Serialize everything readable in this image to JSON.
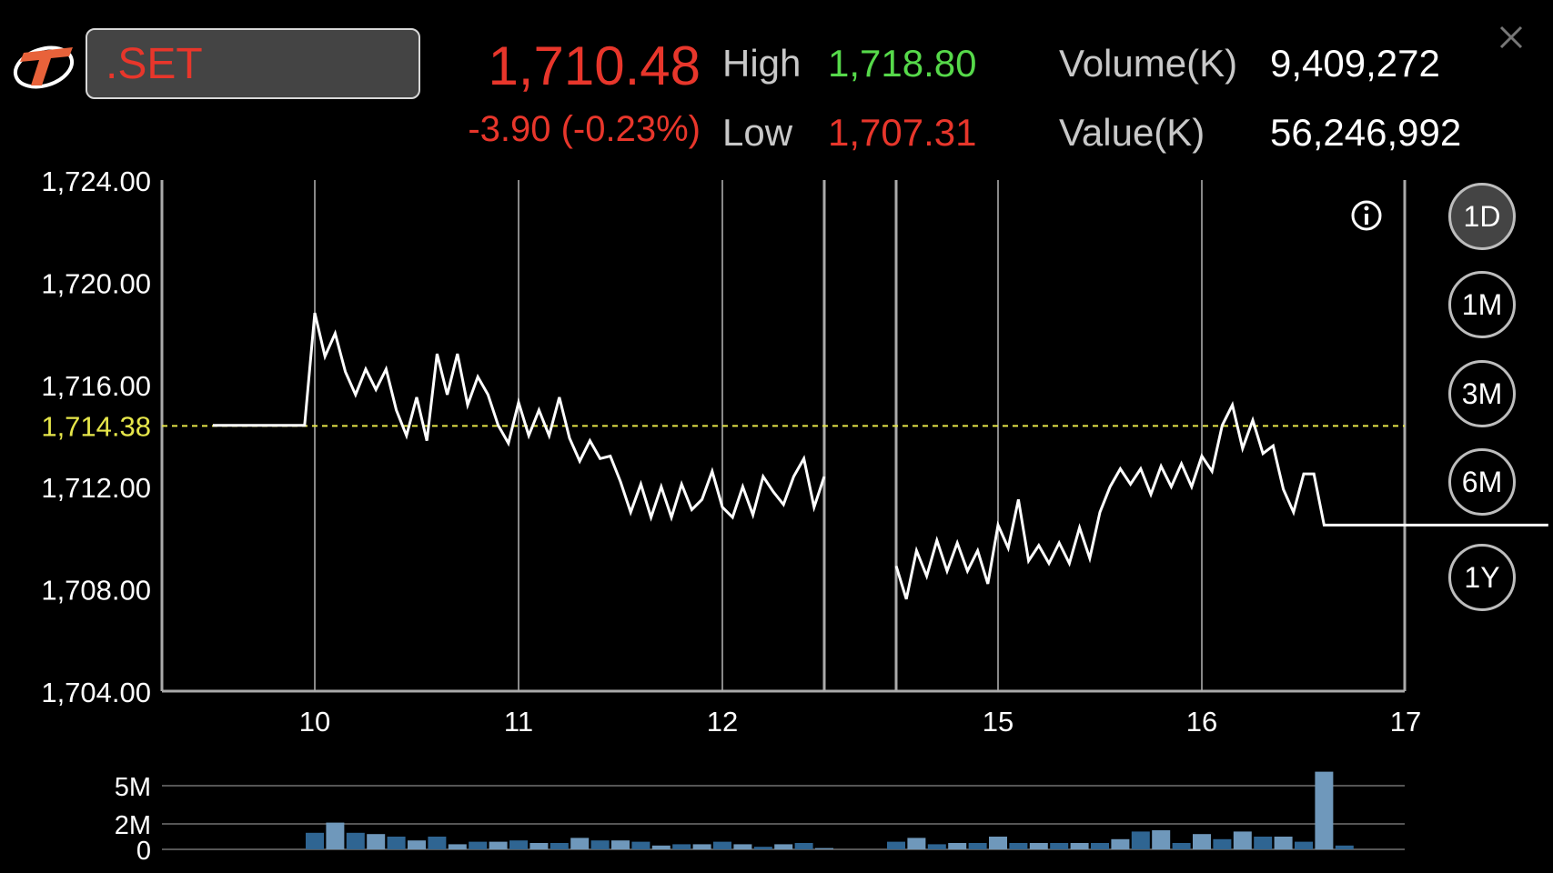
{
  "header": {
    "symbol": ".SET",
    "last_price": "1,710.48",
    "change": "-3.90 (-0.23%)",
    "high_label": "High",
    "high_value": "1,718.80",
    "low_label": "Low",
    "low_value": "1,707.31",
    "volume_label": "Volume(K)",
    "volume_value": "9,409,272",
    "value_label": "Value(K)",
    "value_value": "56,246,992"
  },
  "ranges": [
    {
      "label": "1D",
      "active": true
    },
    {
      "label": "1M",
      "active": false
    },
    {
      "label": "3M",
      "active": false
    },
    {
      "label": "6M",
      "active": false
    },
    {
      "label": "1Y",
      "active": false
    }
  ],
  "colors": {
    "up": "#56d94a",
    "down": "#e8362b",
    "prev_close_line": "#e6e64a",
    "volume_bar": "#3d6f99"
  },
  "chart_data": [
    {
      "type": "line",
      "ylim": [
        1704.0,
        1724.0
      ],
      "y_ticks": [
        "1,724.00",
        "1,720.00",
        "1,716.00",
        "1,712.00",
        "1,708.00",
        "1,704.00"
      ],
      "y_tick_values": [
        1724,
        1720,
        1716,
        1712,
        1708,
        1704
      ],
      "x_ticks": [
        "10",
        "11",
        "12",
        "15",
        "16",
        "17"
      ],
      "prev_close": 1714.38,
      "prev_close_label": "1,714.38",
      "series": [
        {
          "segments": [
            {
              "x": [
                9.5,
                9.95,
                10.0,
                10.05,
                10.1,
                10.15,
                10.2,
                10.25,
                10.3,
                10.35,
                10.4,
                10.45,
                10.5,
                10.55,
                10.6,
                10.65,
                10.7,
                10.75,
                10.8,
                10.85,
                10.9,
                10.95,
                11.0,
                11.05,
                11.1,
                11.15,
                11.2,
                11.25,
                11.3,
                11.35,
                11.4,
                11.45,
                11.5,
                11.55,
                11.6,
                11.65,
                11.7,
                11.75,
                11.8,
                11.85,
                11.9,
                11.95,
                12.0,
                12.05,
                12.1,
                12.15,
                12.2,
                12.25,
                12.3,
                12.35,
                12.4,
                12.45,
                12.5
              ],
              "y": [
                1714.4,
                1714.4,
                1718.8,
                1717.1,
                1718.0,
                1716.5,
                1715.6,
                1716.6,
                1715.8,
                1716.6,
                1715.0,
                1714.0,
                1715.5,
                1713.8,
                1717.2,
                1715.6,
                1717.2,
                1715.2,
                1716.3,
                1715.6,
                1714.4,
                1713.7,
                1715.3,
                1714.0,
                1715.0,
                1714.0,
                1715.5,
                1713.9,
                1713.0,
                1713.8,
                1713.1,
                1713.2,
                1712.2,
                1711.0,
                1712.1,
                1710.8,
                1712.0,
                1710.8,
                1712.1,
                1711.1,
                1711.5,
                1712.6,
                1711.2,
                1710.8,
                1712.0,
                1710.9,
                1712.4,
                1711.8,
                1711.3,
                1712.4,
                1713.1,
                1711.2,
                1712.4
              ]
            },
            {
              "x": [
                13.0,
                13.05,
                13.1,
                13.15,
                13.2,
                13.25,
                13.3,
                13.35,
                13.4,
                13.45,
                13.5,
                13.55,
                13.6,
                13.65,
                13.7,
                13.75,
                13.8,
                13.85,
                13.9,
                13.95,
                14.0,
                14.05,
                14.1,
                14.15,
                14.2,
                14.25,
                14.3,
                14.35,
                14.4,
                14.45,
                14.5,
                14.55,
                14.6,
                14.65,
                14.7,
                14.75,
                14.8,
                14.85,
                14.9,
                14.95,
                15.0,
                15.05,
                15.1,
                15.15,
                15.2,
                15.25,
                15.3,
                15.35,
                15.4,
                15.45,
                15.5,
                15.55,
                15.6,
                15.65,
                15.7,
                15.75,
                15.8,
                15.85,
                15.9,
                15.95,
                16.0,
                16.05,
                16.1,
                16.15,
                16.2
              ],
              "y": [
                1708.9,
                1707.6,
                1709.5,
                1708.5,
                1709.9,
                1708.7,
                1709.8,
                1708.7,
                1709.5,
                1708.2,
                1710.5,
                1709.6,
                1711.5,
                1709.1,
                1709.7,
                1709.0,
                1709.8,
                1709.0,
                1710.4,
                1709.2,
                1711.0,
                1712.0,
                1712.7,
                1712.1,
                1712.7,
                1711.7,
                1712.8,
                1712.0,
                1712.9,
                1712.0,
                1713.2,
                1712.6,
                1714.4,
                1715.2,
                1713.5,
                1714.6,
                1713.3,
                1713.6,
                1711.9,
                1711.0,
                1712.5,
                1712.5,
                1710.5,
                1710.5,
                1710.5,
                1710.5,
                1710.5,
                1710.5,
                1710.5,
                1710.5,
                1710.5,
                1710.5,
                1710.5,
                1710.5,
                1710.5,
                1710.5,
                1710.5,
                1710.5,
                1710.5,
                1710.5,
                1710.5,
                1710.5,
                1710.5,
                1710.5,
                1710.5
              ]
            }
          ]
        }
      ]
    },
    {
      "type": "bar",
      "y_ticks": [
        "5M",
        "2M",
        "0"
      ],
      "y_tick_values": [
        5,
        2,
        0
      ],
      "ylim": [
        0,
        7
      ],
      "x": [
        10.0,
        10.1,
        10.2,
        10.3,
        10.4,
        10.5,
        10.6,
        10.7,
        10.8,
        10.9,
        11.0,
        11.1,
        11.2,
        11.3,
        11.4,
        11.5,
        11.6,
        11.7,
        11.8,
        11.9,
        12.0,
        12.1,
        12.2,
        12.3,
        12.4,
        12.5,
        13.0,
        13.1,
        13.2,
        13.3,
        13.4,
        13.5,
        13.6,
        13.7,
        13.8,
        13.9,
        14.0,
        14.1,
        14.2,
        14.3,
        14.4,
        14.5,
        14.6,
        14.7,
        14.8,
        14.9,
        15.0,
        15.1,
        15.2,
        15.3,
        15.4,
        15.5,
        15.6
      ],
      "values": [
        1.3,
        2.1,
        1.3,
        1.2,
        1.0,
        0.7,
        1.0,
        0.4,
        0.6,
        0.6,
        0.7,
        0.5,
        0.5,
        0.9,
        0.7,
        0.7,
        0.6,
        0.3,
        0.4,
        0.4,
        0.6,
        0.4,
        0.2,
        0.4,
        0.5,
        0.1,
        0.6,
        0.9,
        0.4,
        0.5,
        0.5,
        1.0,
        0.5,
        0.5,
        0.5,
        0.5,
        0.5,
        0.8,
        1.4,
        1.5,
        0.5,
        1.2,
        0.8,
        1.4,
        1.0,
        1.0,
        0.6,
        6.1,
        0.3,
        0,
        0,
        0,
        0
      ]
    }
  ]
}
